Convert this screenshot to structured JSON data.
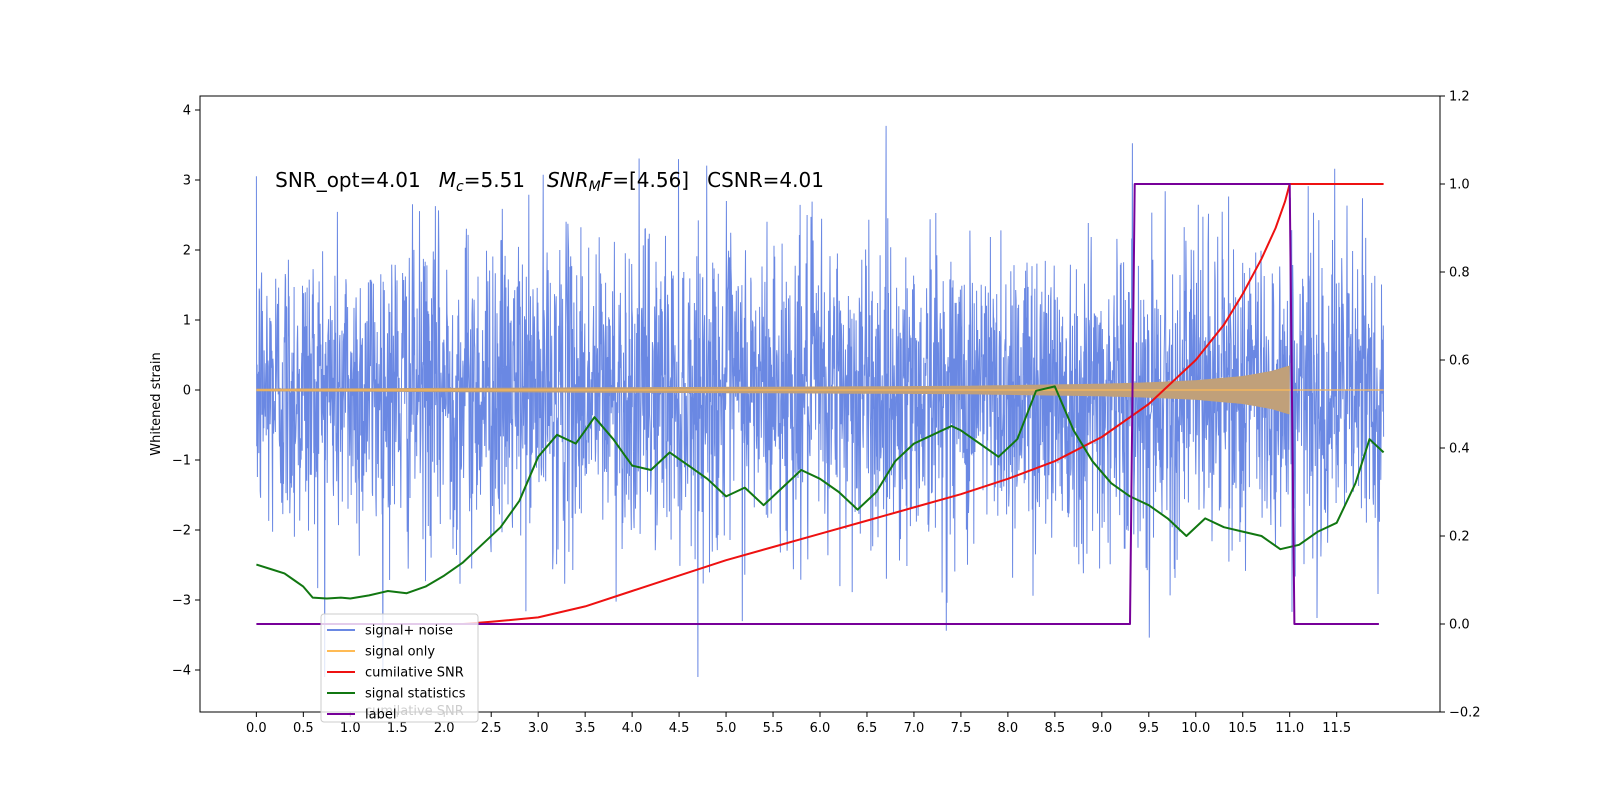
{
  "chart_data": {
    "type": "line",
    "title": "",
    "xlabel": "",
    "ylabel": "Whitened strain",
    "xlim": [
      -0.6,
      12.6
    ],
    "ylim": [
      -4.6,
      4.2
    ],
    "y2lim": [
      -0.2,
      1.2
    ],
    "x_ticks": [
      0.0,
      0.5,
      1.0,
      1.5,
      2.0,
      2.5,
      3.0,
      3.5,
      4.0,
      4.5,
      5.0,
      5.5,
      6.0,
      6.5,
      7.0,
      7.5,
      8.0,
      8.5,
      9.0,
      9.5,
      10.0,
      10.5,
      11.0,
      11.5
    ],
    "x_tick_labels": [
      "0.0",
      "0.5",
      "1.0",
      "1.5",
      "2.0",
      "2.5",
      "3.0",
      "3.5",
      "4.0",
      "4.5",
      "5.0",
      "5.5",
      "6.0",
      "6.5",
      "7.0",
      "7.5",
      "8.0",
      "8.5",
      "9.0",
      "9.5",
      "10.0",
      "10.5",
      "11.0",
      "11.5"
    ],
    "y_ticks": [
      4,
      3,
      2,
      1,
      0,
      -1,
      -2,
      -3,
      -4
    ],
    "y_tick_labels": [
      "4",
      "3",
      "2",
      "1",
      "0",
      "−1",
      "−2",
      "−3",
      "−4"
    ],
    "y2_ticks": [
      1.2,
      1.0,
      0.8,
      0.6,
      0.4,
      0.2,
      0.0,
      -0.2
    ],
    "y2_tick_labels": [
      "1.2",
      "1.0",
      "0.8",
      "0.6",
      "0.4",
      "0.2",
      "0.0",
      "−0.2"
    ],
    "grid": false,
    "legend_position": "lower-left",
    "annotation": {
      "snr_opt": "SNR_opt=4.01",
      "mc_symbol": "M",
      "mc_sub": "c",
      "mc_value": "=5.51",
      "snrmf_symbol": "SNR",
      "snrmf_sub": "M",
      "snrmf_italic": "F",
      "snrmf_value": "=[4.56]",
      "csnr": "CSNR=4.01",
      "x": 0.2,
      "y": 3.0
    },
    "series": [
      {
        "name": "signal+ noise",
        "color": "#6a88e3",
        "axis": "left",
        "kind": "noise",
        "x_range": [
          0.0,
          12.0
        ],
        "std": 1.1,
        "min": -4.1,
        "max": 3.8
      },
      {
        "name": "signal only",
        "color": "#ffbb55",
        "axis": "left",
        "kind": "chirp",
        "fill_color": "#c0a07a",
        "x_range": [
          0.0,
          12.0
        ],
        "merger_x": 11.0,
        "envelope_x": [
          0.0,
          2.0,
          4.0,
          6.0,
          7.5,
          8.5,
          9.0,
          9.5,
          10.0,
          10.5,
          10.8,
          11.0
        ],
        "envelope_y": [
          0.02,
          0.03,
          0.04,
          0.05,
          0.06,
          0.08,
          0.09,
          0.11,
          0.14,
          0.2,
          0.27,
          0.35
        ]
      },
      {
        "name": "cumilative SNR",
        "color": "#ee1111",
        "axis": "right",
        "x": [
          2.2,
          2.5,
          3.0,
          3.5,
          4.0,
          4.5,
          5.0,
          5.5,
          6.0,
          6.5,
          7.0,
          7.5,
          8.0,
          8.5,
          9.0,
          9.5,
          10.0,
          10.3,
          10.5,
          10.7,
          10.85,
          10.95,
          11.0,
          11.5,
          12.0
        ],
        "y": [
          0.0,
          0.005,
          0.015,
          0.04,
          0.075,
          0.11,
          0.145,
          0.175,
          0.205,
          0.235,
          0.265,
          0.295,
          0.33,
          0.37,
          0.425,
          0.5,
          0.6,
          0.68,
          0.75,
          0.83,
          0.9,
          0.96,
          1.0,
          1.0,
          1.0
        ]
      },
      {
        "name": "signal statistics",
        "color": "#117711",
        "axis": "right",
        "x": [
          0.0,
          0.15,
          0.3,
          0.4,
          0.5,
          0.6,
          0.75,
          0.9,
          1.0,
          1.2,
          1.4,
          1.6,
          1.8,
          2.0,
          2.2,
          2.4,
          2.6,
          2.8,
          2.9,
          3.0,
          3.2,
          3.4,
          3.5,
          3.6,
          3.8,
          3.9,
          4.0,
          4.2,
          4.4,
          4.6,
          4.8,
          5.0,
          5.2,
          5.4,
          5.6,
          5.8,
          6.0,
          6.2,
          6.4,
          6.6,
          6.8,
          7.0,
          7.2,
          7.4,
          7.5,
          7.7,
          7.9,
          8.1,
          8.3,
          8.5,
          8.7,
          8.9,
          9.1,
          9.3,
          9.5,
          9.7,
          9.9,
          10.1,
          10.3,
          10.5,
          10.7,
          10.9,
          11.1,
          11.3,
          11.5,
          11.7,
          11.85,
          12.0
        ],
        "y": [
          0.135,
          0.125,
          0.115,
          0.1,
          0.085,
          0.06,
          0.058,
          0.06,
          0.058,
          0.065,
          0.075,
          0.07,
          0.085,
          0.11,
          0.14,
          0.18,
          0.22,
          0.28,
          0.33,
          0.38,
          0.43,
          0.41,
          0.44,
          0.47,
          0.42,
          0.39,
          0.36,
          0.35,
          0.39,
          0.36,
          0.33,
          0.29,
          0.31,
          0.27,
          0.31,
          0.35,
          0.33,
          0.3,
          0.26,
          0.3,
          0.37,
          0.41,
          0.43,
          0.45,
          0.44,
          0.41,
          0.38,
          0.42,
          0.53,
          0.54,
          0.44,
          0.37,
          0.32,
          0.29,
          0.27,
          0.24,
          0.2,
          0.24,
          0.22,
          0.21,
          0.2,
          0.17,
          0.18,
          0.21,
          0.23,
          0.32,
          0.42,
          0.39
        ]
      },
      {
        "name": "label",
        "color": "#770099",
        "axis": "right",
        "x": [
          0.0,
          9.3,
          9.35,
          11.0,
          11.05,
          11.95
        ],
        "y": [
          0.0,
          0.0,
          1.0,
          1.0,
          0.0,
          0.0
        ]
      }
    ],
    "ghost_legend_text": "cumilative SNR"
  }
}
